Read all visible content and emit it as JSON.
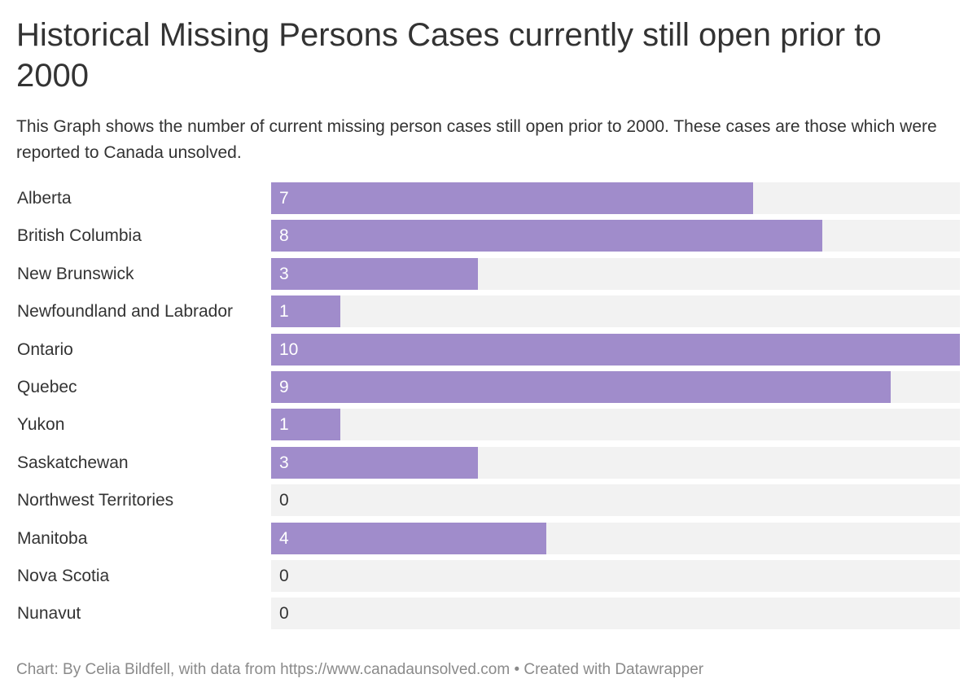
{
  "title": "Historical Missing Persons Cases currently still open prior to 2000",
  "subtitle": "This Graph shows the number of current missing person cases still open prior to 2000. These cases are those which were reported to Canada unsolved.",
  "footer": {
    "credit": "Chart: By Celia Bildfell, with data from https://www.canadaunsolved.com • Created with Datawrapper"
  },
  "colors": {
    "bar": "#a08ccb",
    "track": "#f2f2f2",
    "value_on_bar": "#ffffff",
    "value_off_bar": "#333333"
  },
  "chart_data": {
    "type": "bar",
    "orientation": "horizontal",
    "categories": [
      "Alberta",
      "British Columbia",
      "New Brunswick",
      "Newfoundland and Labrador",
      "Ontario",
      "Quebec",
      "Yukon",
      "Saskatchewan",
      "Northwest Territories",
      "Manitoba",
      "Nova Scotia",
      "Nunavut"
    ],
    "values": [
      7,
      8,
      3,
      1,
      10,
      9,
      1,
      3,
      0,
      4,
      0,
      0
    ],
    "xlim": [
      0,
      10
    ],
    "grid": false,
    "legend": "none"
  }
}
